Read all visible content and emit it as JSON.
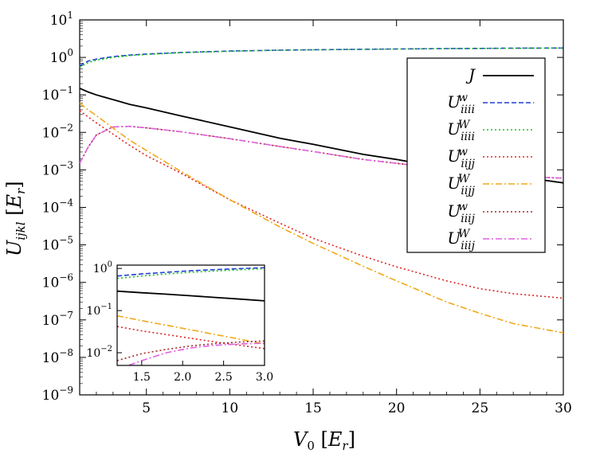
{
  "chart_data": {
    "type": "line",
    "xlabel": "V_0 [E_r]",
    "ylabel": "U_ijkl [E_r]",
    "xlim": [
      1,
      30
    ],
    "ylim": [
      1e-09,
      10
    ],
    "yscale": "log",
    "grid": false,
    "legend_position": "right",
    "x_ticks": [
      "5",
      "10",
      "15",
      "20",
      "25",
      "30"
    ],
    "y_ticks": [
      "10^-9",
      "10^-8",
      "10^-7",
      "10^-6",
      "10^-5",
      "10^-4",
      "10^-3",
      "10^-2",
      "10^-1",
      "10^0",
      "10^1"
    ],
    "x": [
      1,
      1.5,
      2,
      3,
      4,
      5,
      7,
      10,
      13,
      15,
      18,
      20,
      23,
      25,
      27,
      30
    ],
    "series": [
      {
        "name": "J",
        "color": "#000000",
        "dash": "solid",
        "values": [
          0.15,
          0.12,
          0.1,
          0.075,
          0.056,
          0.045,
          0.028,
          0.014,
          0.007,
          0.0048,
          0.0026,
          0.0019,
          0.0011,
          0.0009,
          0.00069,
          0.00045
        ]
      },
      {
        "name": "U^w_iiii",
        "color": "#1f3fd6",
        "dash": "dashed",
        "values": [
          0.6,
          0.8,
          0.9,
          1.05,
          1.15,
          1.23,
          1.35,
          1.48,
          1.56,
          1.6,
          1.65,
          1.68,
          1.72,
          1.74,
          1.76,
          1.78
        ]
      },
      {
        "name": "U^W_iiii",
        "color": "#22c022",
        "dash": "dotted",
        "values": [
          0.55,
          0.72,
          0.84,
          1.0,
          1.12,
          1.2,
          1.33,
          1.46,
          1.55,
          1.59,
          1.64,
          1.67,
          1.71,
          1.73,
          1.75,
          1.77
        ]
      },
      {
        "name": "U^w_iijj",
        "color": "#e02525",
        "dash": "dotted",
        "values": [
          0.038,
          0.026,
          0.018,
          0.009,
          0.0045,
          0.0024,
          0.00085,
          0.00016,
          3.8e-05,
          1.5e-05,
          5e-06,
          2.6e-06,
          1.1e-06,
          6.8e-07,
          5e-07,
          3.8e-07
        ]
      },
      {
        "name": "U^W_iijj",
        "color": "#f0a818",
        "dash": "dashdot",
        "values": [
          0.06,
          0.04,
          0.028,
          0.013,
          0.0062,
          0.0033,
          0.00095,
          0.00016,
          3e-05,
          1.1e-05,
          2.7e-06,
          1.1e-06,
          3e-07,
          1.5e-07,
          8e-08,
          4.5e-08
        ]
      },
      {
        "name": "U^w_iiij",
        "color": "#a02828",
        "dash": "dotted",
        "values": [
          0.0015,
          0.004,
          0.0085,
          0.014,
          0.0145,
          0.0132,
          0.0105,
          0.0068,
          0.0042,
          0.0031,
          0.0019,
          0.0015,
          0.001,
          0.0008,
          0.00068,
          0.0006
        ]
      },
      {
        "name": "U^W_iiij",
        "color": "#e060e0",
        "dash": "dashdot",
        "values": [
          0.0015,
          0.004,
          0.0085,
          0.014,
          0.0145,
          0.0132,
          0.0105,
          0.0068,
          0.0042,
          0.0031,
          0.0019,
          0.0015,
          0.001,
          0.0008,
          0.00068,
          0.0006
        ]
      }
    ],
    "inset": {
      "xlim": [
        1.2,
        3.0
      ],
      "ylim": [
        0.005,
        1.2
      ],
      "yscale": "log",
      "x_ticks": [
        "1.5",
        "2.0",
        "2.5",
        "3.0"
      ],
      "y_ticks": [
        "10^-2",
        "10^-1",
        "10^0"
      ],
      "x": [
        1.2,
        1.5,
        1.8,
        2.1,
        2.4,
        2.7,
        3.0
      ],
      "series": [
        {
          "name": "J",
          "values": [
            0.29,
            0.265,
            0.245,
            0.225,
            0.205,
            0.187,
            0.17
          ]
        },
        {
          "name": "U^w_iiii",
          "values": [
            0.66,
            0.74,
            0.81,
            0.88,
            0.94,
            0.99,
            1.04
          ]
        },
        {
          "name": "U^W_iiii",
          "values": [
            0.58,
            0.66,
            0.74,
            0.81,
            0.87,
            0.93,
            0.99
          ]
        },
        {
          "name": "U^w_iijj",
          "values": [
            0.042,
            0.033,
            0.027,
            0.022,
            0.018,
            0.015,
            0.0125
          ]
        },
        {
          "name": "U^W_iijj",
          "values": [
            0.075,
            0.058,
            0.045,
            0.035,
            0.027,
            0.021,
            0.016
          ]
        },
        {
          "name": "U^w_iiij",
          "values": [
            0.0065,
            0.0095,
            0.012,
            0.0145,
            0.0165,
            0.018,
            0.019
          ]
        },
        {
          "name": "U^W_iiij",
          "values": [
            0.004,
            0.0065,
            0.01,
            0.013,
            0.015,
            0.0162,
            0.0168
          ]
        }
      ]
    }
  }
}
